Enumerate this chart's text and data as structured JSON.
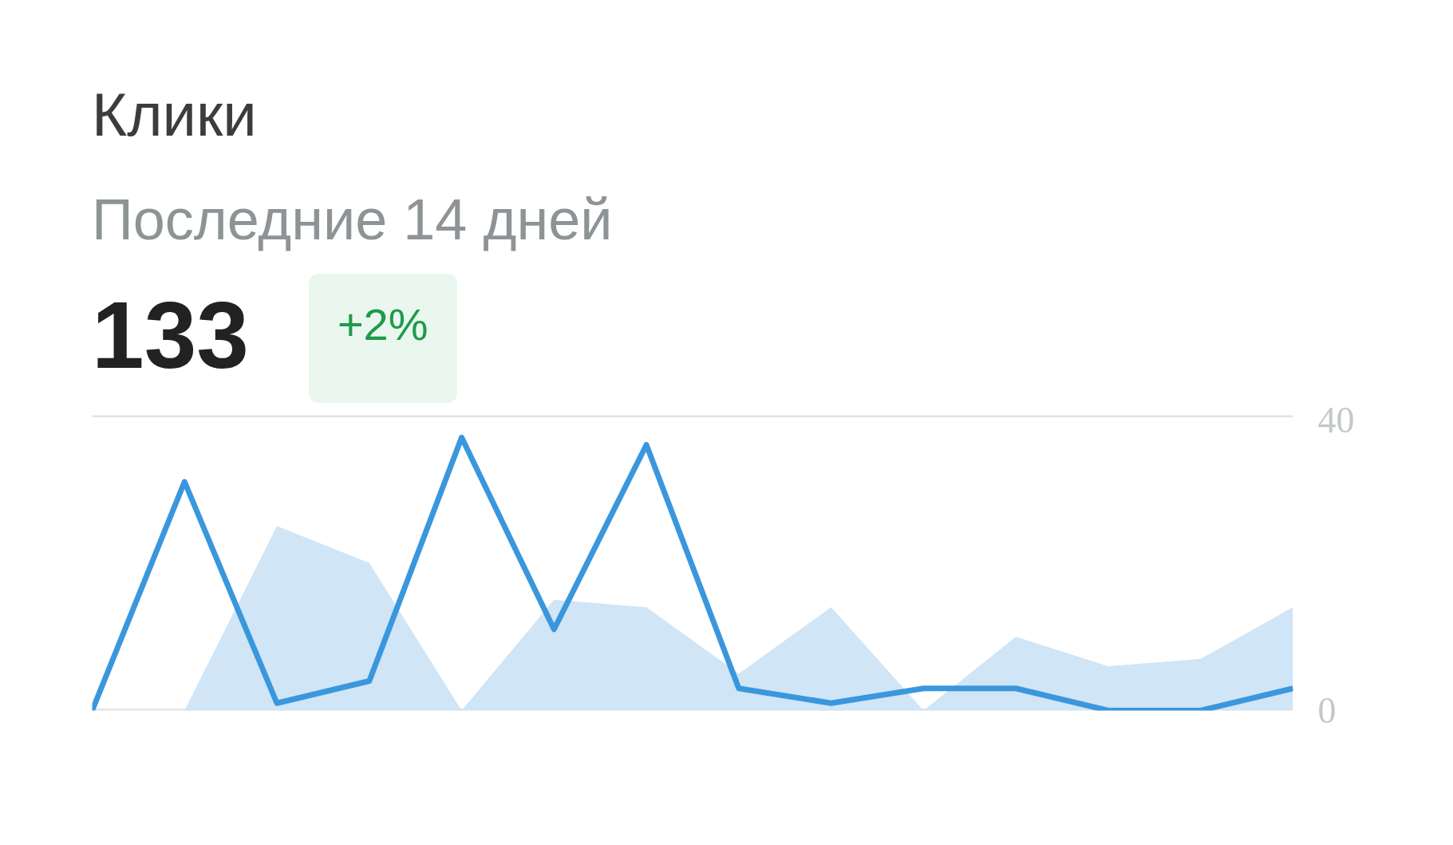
{
  "chart_data": {
    "type": "line",
    "title": "Клики",
    "subtitle": "Последние 14 дней",
    "annotations": [
      "133",
      "+2%"
    ],
    "categories": [
      null,
      null,
      null,
      null,
      null,
      null,
      null,
      null,
      null,
      null,
      null,
      null,
      null,
      null
    ],
    "series": [
      {
        "type": "area",
        "color": "#d0e5f6",
        "values": [
          0,
          0,
          25,
          20,
          0,
          15,
          14,
          5,
          14,
          0,
          10,
          6,
          7,
          14
        ]
      },
      {
        "color": "#3a97dd",
        "values": [
          0,
          31,
          1,
          4,
          37,
          11,
          36,
          3,
          1,
          3,
          3,
          0,
          0,
          3
        ]
      }
    ],
    "ylim": [
      0,
      40
    ],
    "yticks": [
      0,
      40
    ],
    "grid": "y"
  }
}
